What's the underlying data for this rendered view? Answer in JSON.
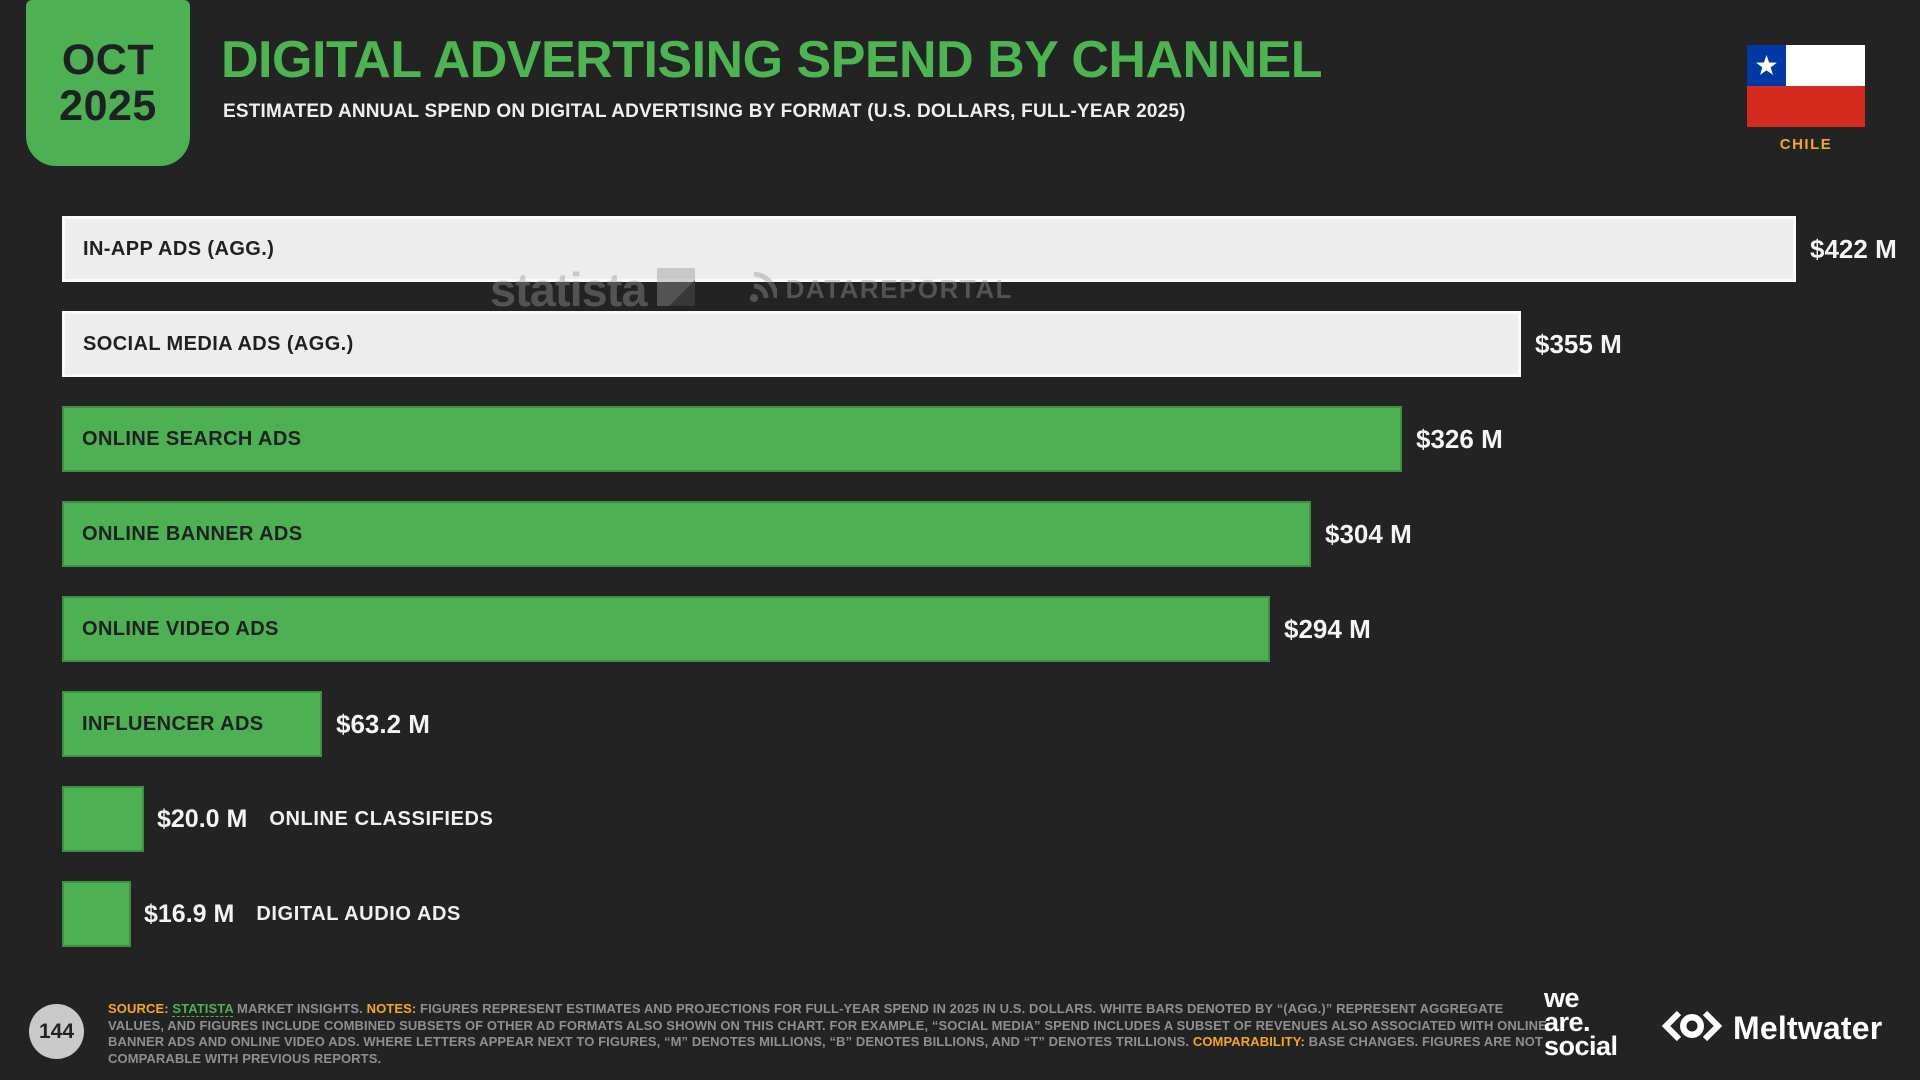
{
  "page": {
    "badge": {
      "month": "OCT",
      "year": "2025"
    },
    "title": "DIGITAL ADVERTISING SPEND BY CHANNEL",
    "subtitle": "ESTIMATED ANNUAL SPEND ON DIGITAL ADVERTISING BY FORMAT (U.S. DOLLARS, FULL-YEAR 2025)",
    "country": "CHILE",
    "page_number": "144"
  },
  "watermark": {
    "statista": "statista",
    "datareportal": "DATAREPORTAL"
  },
  "chart_data": {
    "type": "bar",
    "orientation": "horizontal",
    "title": "DIGITAL ADVERTISING SPEND BY CHANNEL",
    "unit": "U.S. dollars, millions",
    "xlim": [
      0,
      430
    ],
    "grid": false,
    "legend": false,
    "categories": [
      "IN-APP ADS (AGG.)",
      "SOCIAL MEDIA ADS (AGG.)",
      "ONLINE SEARCH ADS",
      "ONLINE BANNER ADS",
      "ONLINE VIDEO ADS",
      "INFLUENCER ADS",
      "ONLINE CLASSIFIEDS",
      "DIGITAL AUDIO ADS"
    ],
    "values": [
      422,
      355,
      326,
      304,
      294,
      63.2,
      20.0,
      16.9
    ],
    "value_labels": [
      "$422 M",
      "$355 M",
      "$326 M",
      "$304 M",
      "$294 M",
      "$63.2 M",
      "$20.0 M",
      "$16.9 M"
    ],
    "bar_styles": [
      "white",
      "white",
      "green",
      "green",
      "green",
      "green",
      "green",
      "green"
    ],
    "label_layout": [
      "inside",
      "inside",
      "inside",
      "inside",
      "inside",
      "inside",
      "outside",
      "outside"
    ]
  },
  "footer": {
    "segments": [
      {
        "style": "orange",
        "text": "SOURCE: "
      },
      {
        "style": "link",
        "text": "STATISTA"
      },
      {
        "style": "plain",
        "text": " MARKET INSIGHTS. "
      },
      {
        "style": "orange",
        "text": "NOTES: "
      },
      {
        "style": "plain",
        "text": "FIGURES REPRESENT ESTIMATES AND PROJECTIONS FOR FULL-YEAR SPEND IN 2025 IN U.S. DOLLARS. WHITE BARS DENOTED BY “(AGG.)” REPRESENT AGGREGATE VALUES, AND FIGURES INCLUDE COMBINED SUBSETS OF OTHER AD FORMATS ALSO SHOWN ON THIS CHART. FOR EXAMPLE, “SOCIAL MEDIA” SPEND INCLUDES A SUBSET OF REVENUES ALSO ASSOCIATED WITH ONLINE BANNER ADS AND ONLINE VIDEO ADS. WHERE LETTERS APPEAR NEXT TO FIGURES, “M” DENOTES MILLIONS, “B” DENOTES BILLIONS, AND “T” DENOTES TRILLIONS. "
      },
      {
        "style": "orange",
        "text": "COMPARABILITY: "
      },
      {
        "style": "plain",
        "text": "BASE CHANGES. FIGURES ARE NOT COMPARABLE WITH PREVIOUS REPORTS."
      }
    ]
  },
  "logos": {
    "we_are_social": [
      "we",
      "are.",
      "social"
    ],
    "meltwater": "Meltwater"
  },
  "colors": {
    "background": "#232323",
    "bar_green": "#4db052",
    "title_green": "#4cb551",
    "white_bar": "#ededed",
    "accent_orange": "#f5a623",
    "footnote_gray": "#8f8f8f",
    "flag_blue": "#0039a6",
    "flag_red": "#d52b1e"
  }
}
